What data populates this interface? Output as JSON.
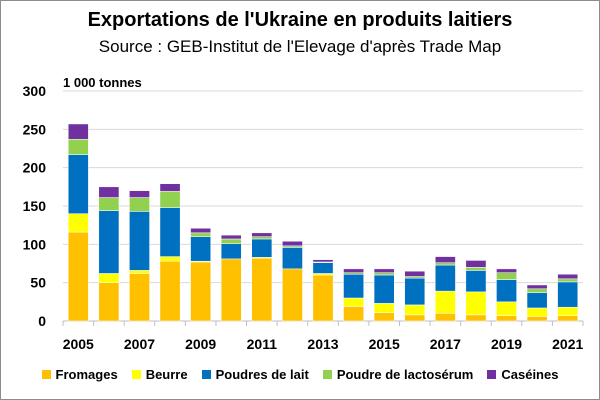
{
  "chart_data": {
    "type": "bar",
    "stacked": true,
    "title": "Exportations de l'Ukraine en produits laitiers",
    "subtitle": "Source : GEB-Institut de l'Elevage d'après Trade Map",
    "ylabel": "1 000 tonnes",
    "xlabel": "",
    "ylim": [
      0,
      300
    ],
    "yticks": [
      0,
      50,
      100,
      150,
      200,
      250,
      300
    ],
    "grid": true,
    "legend_position": "bottom",
    "categories": [
      "2005",
      "2006",
      "2007",
      "2008",
      "2009",
      "2010",
      "2011",
      "2012",
      "2013",
      "2014",
      "2015",
      "2016",
      "2017",
      "2018",
      "2019",
      "2020",
      "2021"
    ],
    "xtick_labels": [
      "2005",
      "",
      "2007",
      "",
      "2009",
      "",
      "2011",
      "",
      "2013",
      "",
      "2015",
      "",
      "2017",
      "",
      "2019",
      "",
      "2021"
    ],
    "series": [
      {
        "name": "Fromages",
        "color": "#FFC000",
        "values": [
          116,
          50,
          62,
          78,
          77,
          81,
          82,
          68,
          60,
          19,
          11,
          8,
          10,
          8,
          7,
          6,
          7
        ]
      },
      {
        "name": "Beurre",
        "color": "#FFFF00",
        "values": [
          24,
          12,
          4,
          6,
          1,
          0,
          1,
          0,
          2,
          11,
          12,
          13,
          29,
          30,
          18,
          11,
          11
        ]
      },
      {
        "name": "Poudres de lait",
        "color": "#0070C0",
        "values": [
          77,
          82,
          77,
          64,
          32,
          20,
          24,
          28,
          14,
          31,
          37,
          35,
          34,
          28,
          29,
          20,
          33
        ]
      },
      {
        "name": "Poudre de lactosérum",
        "color": "#92D050",
        "values": [
          20,
          17,
          18,
          21,
          5,
          6,
          3,
          2,
          1,
          2,
          3,
          2,
          3,
          4,
          9,
          5,
          4
        ]
      },
      {
        "name": "Caséines",
        "color": "#7030A0",
        "values": [
          20,
          14,
          9,
          10,
          6,
          5,
          5,
          6,
          3,
          5,
          5,
          7,
          8,
          9,
          5,
          5,
          6
        ]
      }
    ]
  }
}
